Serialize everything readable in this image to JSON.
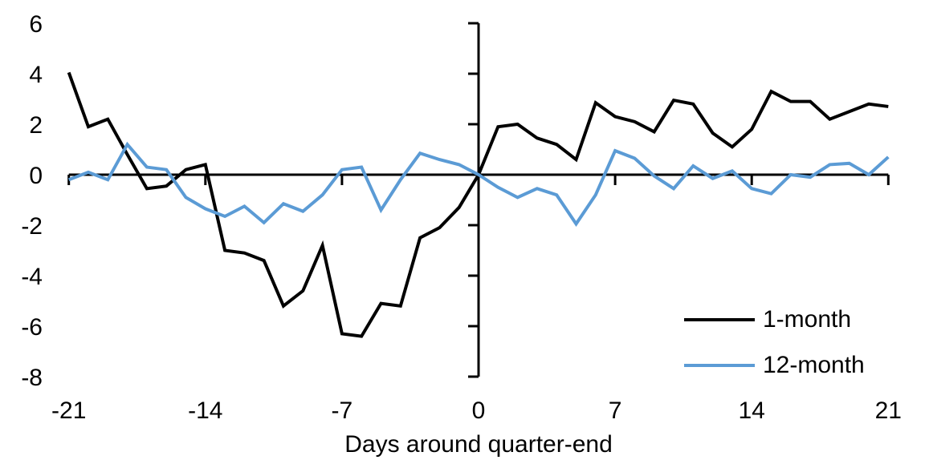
{
  "chart_data": {
    "type": "line",
    "title": "",
    "xlabel": "Days around quarter-end",
    "ylabel": "",
    "xlim": [
      -21,
      21
    ],
    "ylim": [
      -8,
      6
    ],
    "grid": false,
    "legend_position": "inside-bottom-right",
    "x_ticks": [
      -21,
      -14,
      -7,
      0,
      7,
      14,
      21
    ],
    "y_ticks": [
      6,
      4,
      2,
      0,
      -2,
      -4,
      -6,
      -8
    ],
    "x": [
      -21,
      -20,
      -19,
      -18,
      -17,
      -16,
      -15,
      -14,
      -13,
      -12,
      -11,
      -10,
      -9,
      -8,
      -7,
      -6,
      -5,
      -4,
      -3,
      -2,
      -1,
      0,
      1,
      2,
      3,
      4,
      5,
      6,
      7,
      8,
      9,
      10,
      11,
      12,
      13,
      14,
      15,
      16,
      17,
      18,
      19,
      20,
      21
    ],
    "series": [
      {
        "name": "1-month",
        "color": "#000000",
        "values": [
          4.05,
          1.9,
          2.2,
          0.8,
          -0.55,
          -0.45,
          0.2,
          0.4,
          -3.0,
          -3.1,
          -3.4,
          -5.2,
          -4.6,
          -2.8,
          -6.3,
          -6.4,
          -5.1,
          -5.2,
          -2.5,
          -2.1,
          -1.3,
          0,
          1.9,
          2.0,
          1.45,
          1.2,
          0.6,
          2.85,
          2.3,
          2.1,
          1.7,
          2.95,
          2.8,
          1.65,
          1.1,
          1.8,
          3.3,
          2.9,
          2.9,
          2.2,
          2.5,
          2.8,
          2.7
        ]
      },
      {
        "name": "12-month",
        "color": "#5B9BD5",
        "values": [
          -0.2,
          0.1,
          -0.2,
          1.2,
          0.3,
          0.2,
          -0.9,
          -1.35,
          -1.65,
          -1.25,
          -1.9,
          -1.15,
          -1.45,
          -0.8,
          0.2,
          0.3,
          -1.4,
          -0.2,
          0.85,
          0.6,
          0.4,
          0,
          -0.5,
          -0.9,
          -0.55,
          -0.8,
          -1.95,
          -0.8,
          0.95,
          0.65,
          -0.05,
          -0.55,
          0.35,
          -0.15,
          0.15,
          -0.55,
          -0.75,
          0.0,
          -0.1,
          0.4,
          0.45,
          0.0,
          0.7
        ]
      }
    ]
  }
}
